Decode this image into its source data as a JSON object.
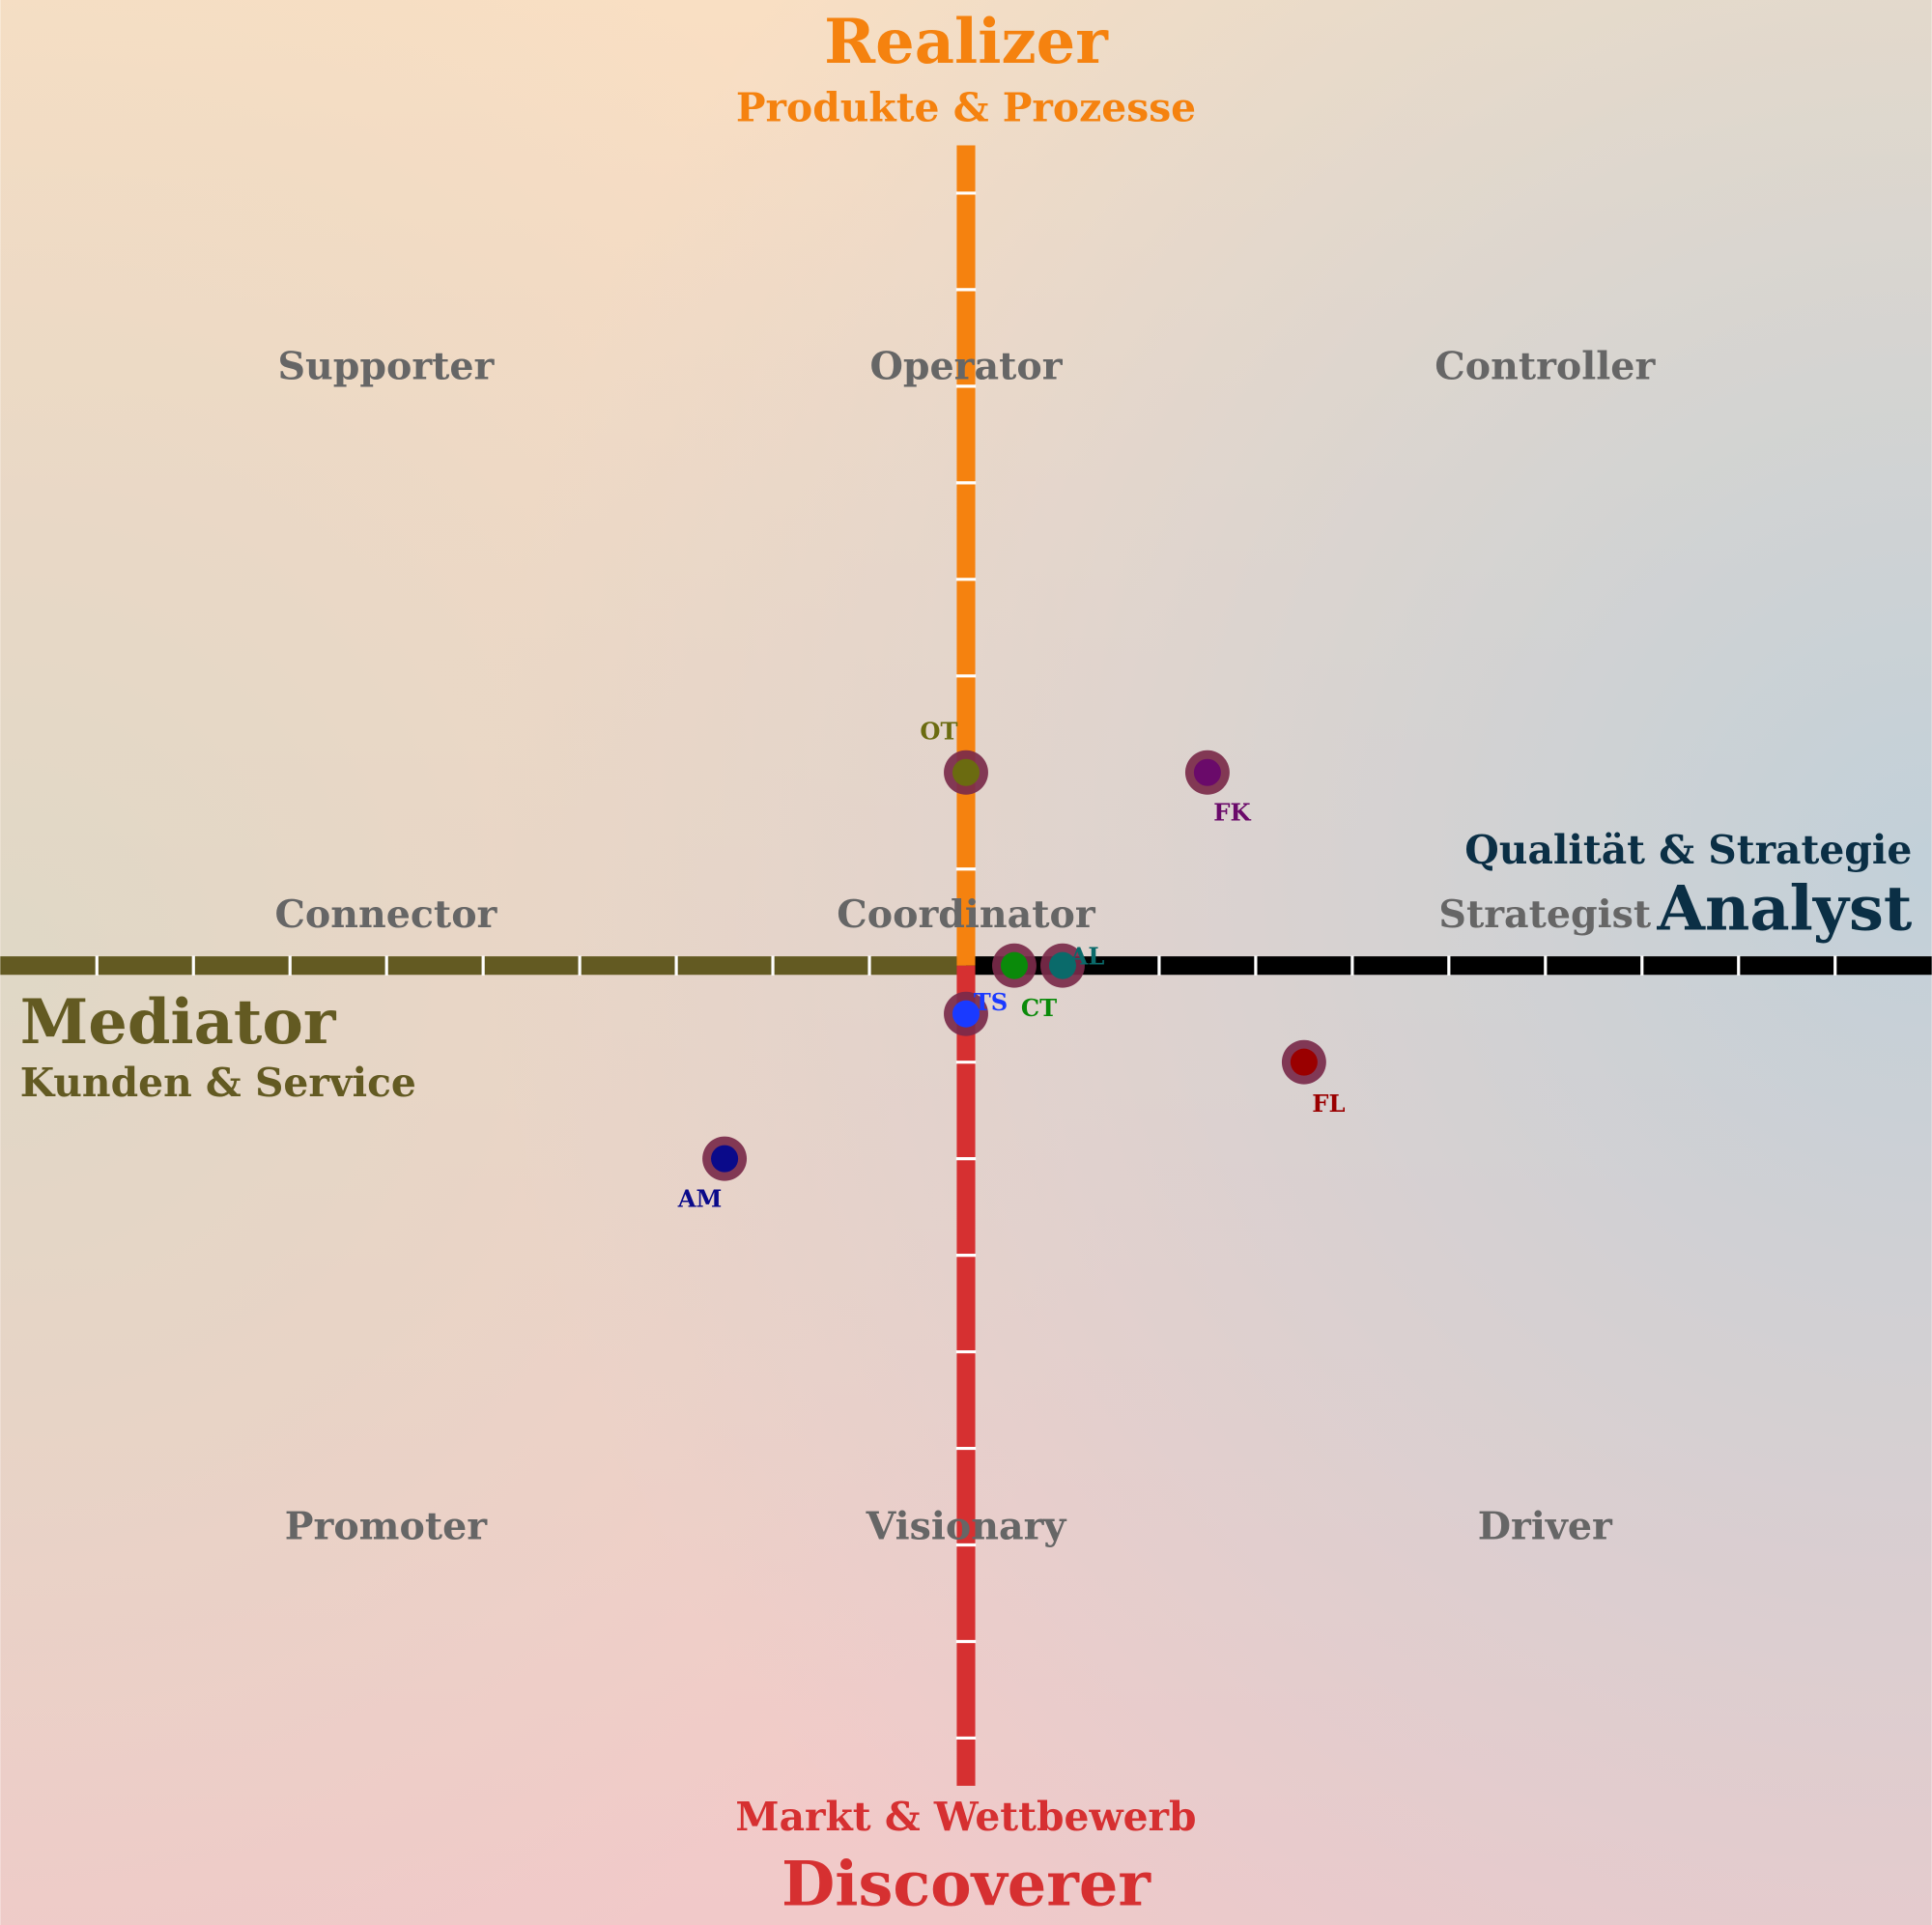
{
  "chart_data": {
    "type": "scatter",
    "axes": {
      "top": {
        "title": "Realizer",
        "subtitle": "Produkte & Prozesse",
        "color": "#f5820f"
      },
      "left": {
        "title": "Mediator",
        "subtitle": "Kunden & Service",
        "color": "#635a22"
      },
      "right": {
        "title": "Analyst",
        "subtitle": "Qualität & Strategie",
        "color": "#0b2f45"
      },
      "bottom": {
        "title": "Discoverer",
        "subtitle": "Markt & Wettbewerb",
        "color": "#d63031"
      }
    },
    "region_labels": [
      "Supporter",
      "Operator",
      "Controller",
      "Connector",
      "Coordinator",
      "Strategist",
      "Promoter",
      "Visionary",
      "Driver"
    ],
    "xlim": [
      -10,
      10
    ],
    "ylim": [
      -10,
      10
    ],
    "series": [
      {
        "name": "OT",
        "color": "#6b6b10",
        "x": [
          0
        ],
        "y": [
          2
        ]
      },
      {
        "name": "FK",
        "color": "#6a0a6a",
        "x": [
          2.5
        ],
        "y": [
          2
        ]
      },
      {
        "name": "CT",
        "color": "#0a8a0a",
        "x": [
          0.5
        ],
        "y": [
          0
        ]
      },
      {
        "name": "AL",
        "color": "#0a6a6a",
        "x": [
          1
        ],
        "y": [
          0
        ]
      },
      {
        "name": "TS",
        "color": "#1a3aff",
        "x": [
          0
        ],
        "y": [
          -0.5
        ]
      },
      {
        "name": "FL",
        "color": "#9a0000",
        "x": [
          3.5
        ],
        "y": [
          -1
        ]
      },
      {
        "name": "AM",
        "color": "#0a0a8a",
        "x": [
          -2.5
        ],
        "y": [
          -2
        ]
      }
    ]
  }
}
